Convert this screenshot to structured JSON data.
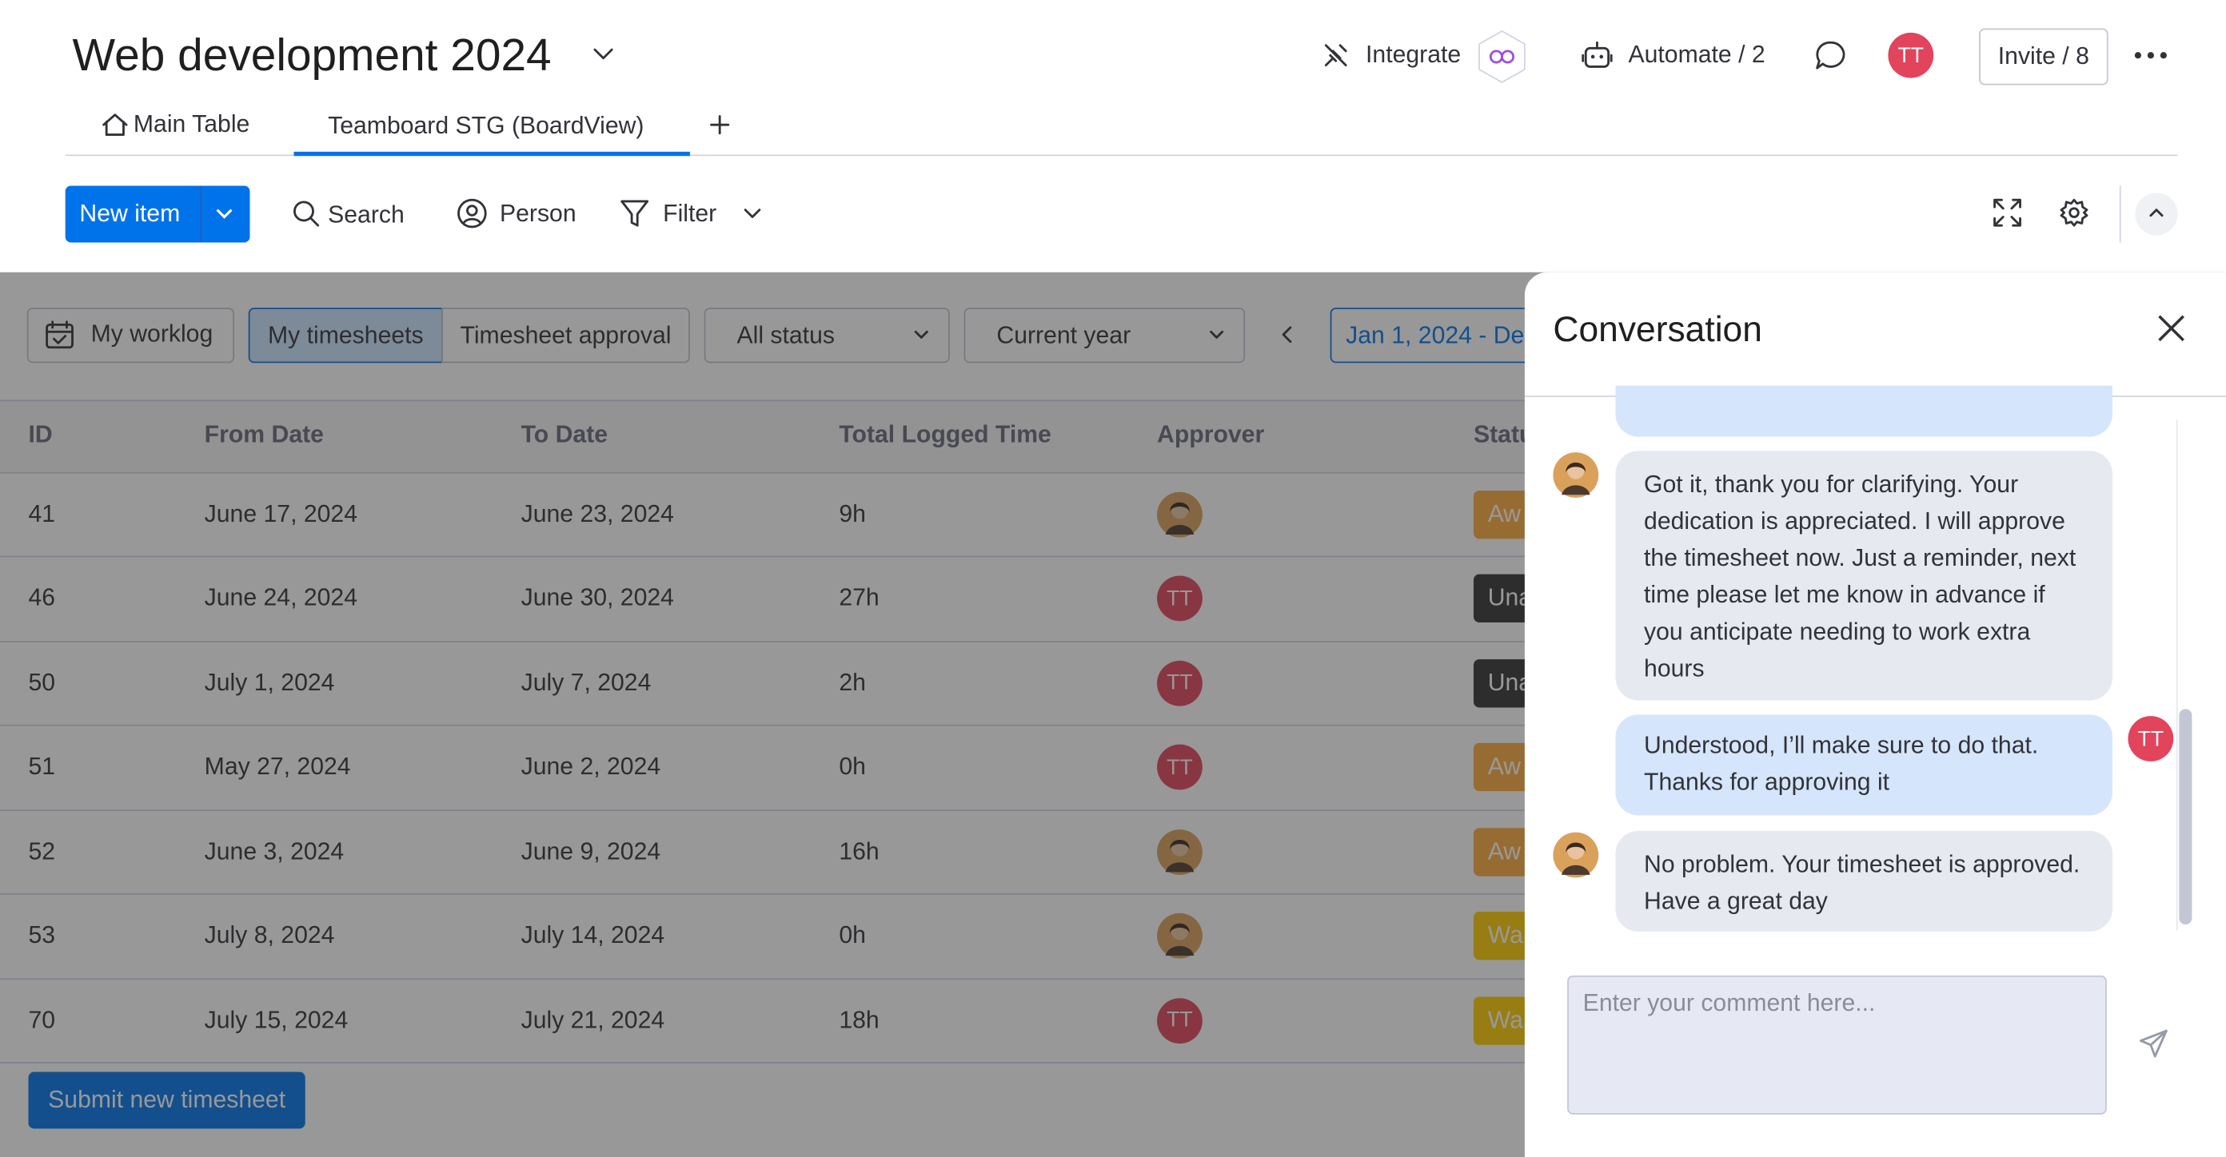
{
  "header": {
    "title": "Web development 2024",
    "integrate": "Integrate",
    "automate": "Automate / 2",
    "avatar": "TT",
    "invite": "Invite / 8"
  },
  "tabs": [
    "Main Table",
    "Teamboard STG (BoardView)"
  ],
  "toolbar": {
    "new_item": "New item",
    "search": "Search",
    "person": "Person",
    "filter": "Filter"
  },
  "filters": {
    "worklog": "My worklog",
    "timesheets": "My timesheets",
    "approval": "Timesheet approval",
    "status": "All status",
    "period": "Current year",
    "range": "Jan 1, 2024 - De"
  },
  "table": {
    "columns": [
      "ID",
      "From Date",
      "To Date",
      "Total Logged Time",
      "Approver",
      "Statu"
    ],
    "rows": [
      {
        "id": "41",
        "from": "June 17, 2024",
        "to": "June 23, 2024",
        "time": "9h",
        "approver": null,
        "status": "Aw"
      },
      {
        "id": "46",
        "from": "June 24, 2024",
        "to": "June 30, 2024",
        "time": "27h",
        "approver": "TT",
        "status": "Una"
      },
      {
        "id": "50",
        "from": "July 1, 2024",
        "to": "July 7, 2024",
        "time": "2h",
        "approver": "TT",
        "status": "Una"
      },
      {
        "id": "51",
        "from": "May 27, 2024",
        "to": "June 2, 2024",
        "time": "0h",
        "approver": "TT",
        "status": "Aw"
      },
      {
        "id": "52",
        "from": "June 3, 2024",
        "to": "June 9, 2024",
        "time": "16h",
        "approver": null,
        "status": "Aw"
      },
      {
        "id": "53",
        "from": "July 8, 2024",
        "to": "July 14, 2024",
        "time": "0h",
        "approver": null,
        "status": "Wa"
      },
      {
        "id": "70",
        "from": "July 15, 2024",
        "to": "July 21, 2024",
        "time": "18h",
        "approver": "TT",
        "status": "Wa"
      }
    ]
  },
  "submit": "Submit new timesheet",
  "conversation": {
    "title": "Conversation",
    "messages": [
      {
        "author": null,
        "text": "Got it, thank you for clarifying. Your dedication is appreciated. I will approve the timesheet now. Just a reminder, next time please let me know in advance if you anticipate needing to work extra hours"
      },
      {
        "author": "TT",
        "text": "Understood, I’ll make sure to do that. Thanks for approving it"
      },
      {
        "author": null,
        "text": "No problem. Your timesheet is approved. Have a great day"
      }
    ],
    "placeholder": "Enter your comment here..."
  }
}
